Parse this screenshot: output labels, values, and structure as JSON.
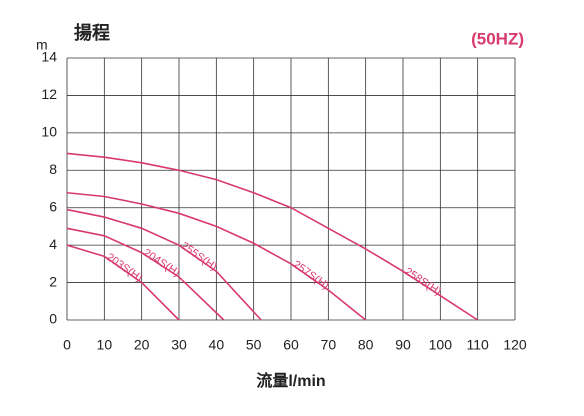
{
  "chart_data": {
    "type": "line",
    "title": "揚程",
    "subtitle": "(50HZ)",
    "y_label": "m",
    "x_label": "流量l/min",
    "xlim": [
      0,
      120
    ],
    "xticks": [
      0,
      10,
      20,
      30,
      40,
      50,
      60,
      70,
      80,
      90,
      100,
      110,
      120
    ],
    "ylim": [
      0,
      14
    ],
    "yticks": [
      0,
      2,
      4,
      6,
      8,
      10,
      12,
      14
    ],
    "grid": true,
    "color": "#d83a6c",
    "series": [
      {
        "name": "203S(H)",
        "x": [
          0,
          10,
          20,
          30
        ],
        "values": [
          4.0,
          3.4,
          2.0,
          0
        ]
      },
      {
        "name": "204S(H)",
        "x": [
          0,
          10,
          20,
          30,
          42
        ],
        "values": [
          4.9,
          4.5,
          3.6,
          2.3,
          0
        ]
      },
      {
        "name": "255S(H)",
        "x": [
          0,
          10,
          20,
          30,
          40,
          52
        ],
        "values": [
          5.9,
          5.5,
          4.9,
          4.0,
          2.6,
          0
        ]
      },
      {
        "name": "257S(H)",
        "x": [
          0,
          10,
          20,
          30,
          40,
          50,
          60,
          70,
          80
        ],
        "values": [
          6.8,
          6.6,
          6.2,
          5.7,
          5.0,
          4.1,
          3.0,
          1.6,
          0
        ]
      },
      {
        "name": "258S(H)",
        "x": [
          0,
          10,
          20,
          30,
          40,
          50,
          60,
          70,
          80,
          90,
          100,
          110
        ],
        "values": [
          8.9,
          8.7,
          8.4,
          8.0,
          7.5,
          6.8,
          6.0,
          4.9,
          3.8,
          2.6,
          1.3,
          0
        ]
      }
    ]
  }
}
